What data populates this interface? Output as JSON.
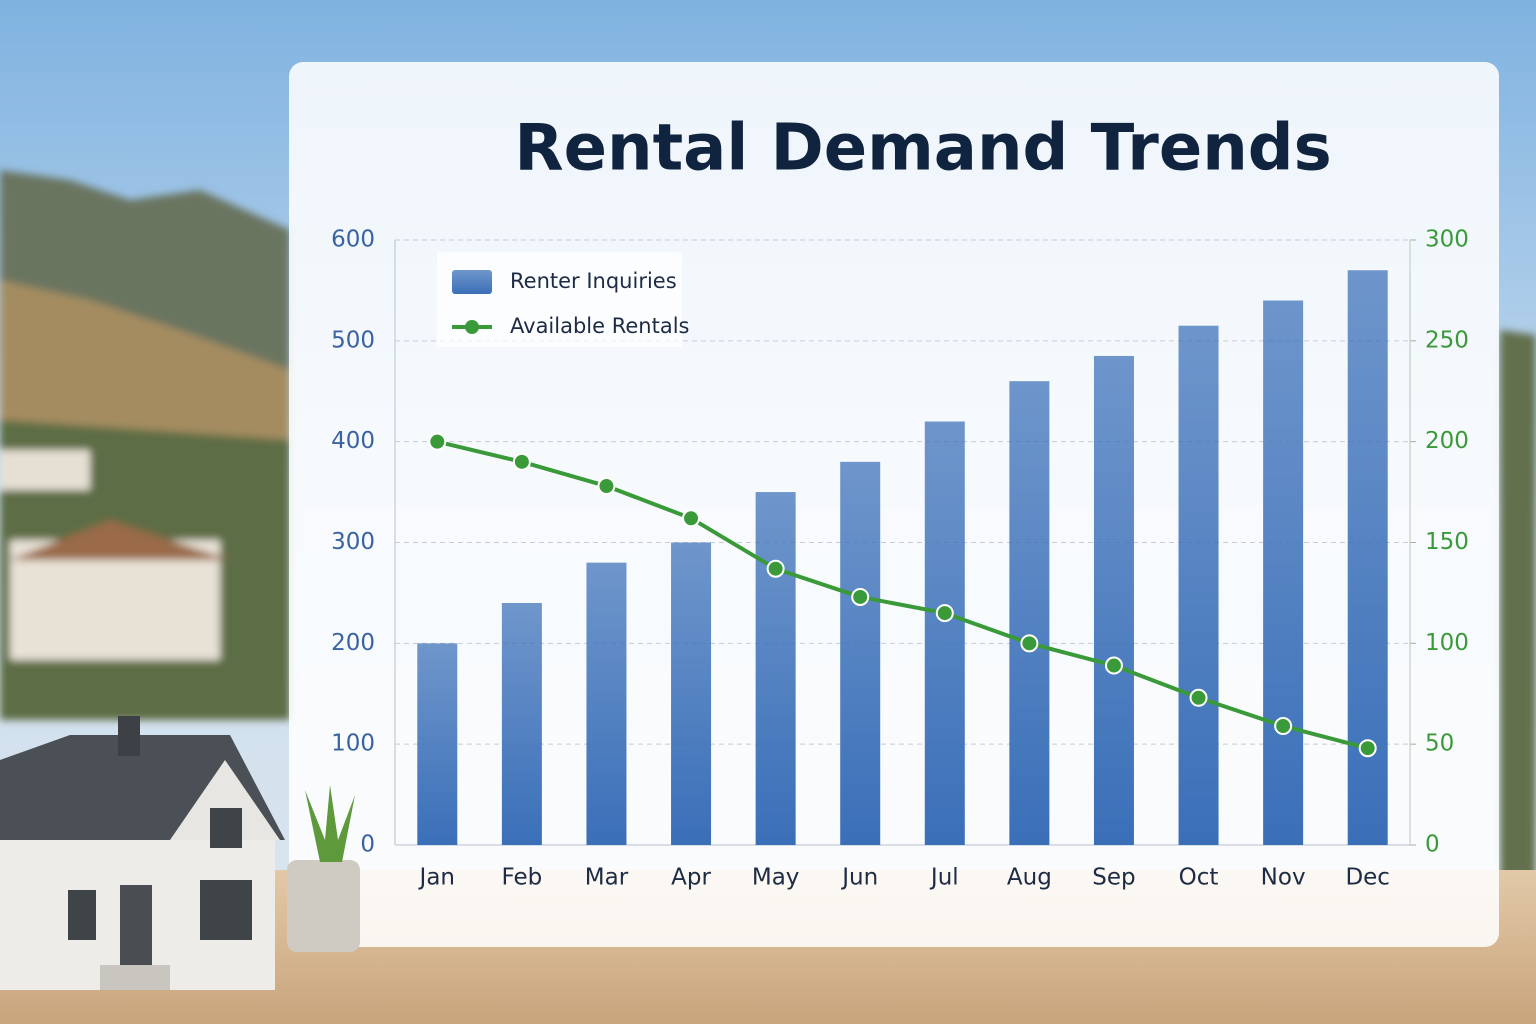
{
  "chart_data": {
    "type": "bar-line",
    "title": "Rental Demand Trends",
    "categories": [
      "Jan",
      "Feb",
      "Mar",
      "Apr",
      "May",
      "Jun",
      "Jul",
      "Aug",
      "Sep",
      "Oct",
      "Nov",
      "Dec"
    ],
    "series": [
      {
        "name": "Renter Inquiries",
        "type": "bar",
        "color": "#3a6fb8",
        "values": [
          200,
          240,
          280,
          300,
          350,
          380,
          420,
          460,
          485,
          515,
          540,
          570
        ]
      },
      {
        "name": "Available Rentals",
        "type": "line",
        "axis": "y2",
        "color": "#3a9a3a",
        "values": [
          200,
          190,
          178,
          162,
          137,
          123,
          115,
          100,
          89,
          73,
          59,
          48
        ]
      }
    ],
    "ylim": [
      0,
      600
    ],
    "yticks": [
      0,
      100,
      200,
      300,
      400,
      500,
      600
    ],
    "y2lim": [
      0,
      300
    ],
    "y2ticks": [
      0,
      50,
      100,
      150,
      200,
      250,
      300
    ],
    "grid": true,
    "legend": "upper left"
  }
}
